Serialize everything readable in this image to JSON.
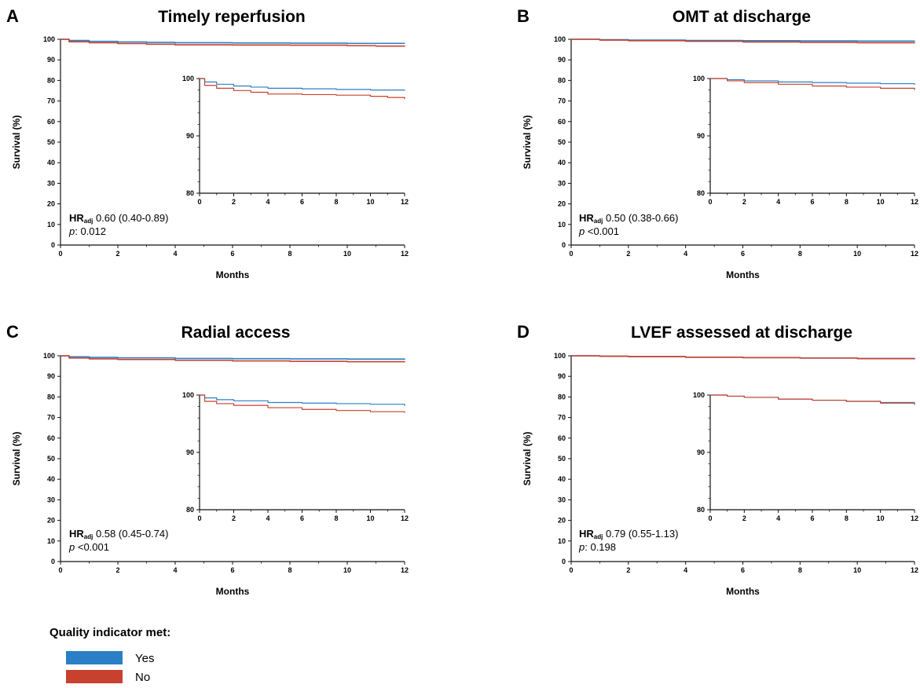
{
  "chart_data": [
    {
      "type": "line",
      "panel": "A",
      "title": "Timely reperfusion",
      "xlabel": "Months",
      "ylabel": "Survival (%)",
      "xlim": [
        0,
        12
      ],
      "ylim": [
        0,
        100
      ],
      "xticks": [
        "0",
        "2",
        "4",
        "6",
        "8",
        "10",
        "12"
      ],
      "yticks": [
        "0",
        "10",
        "20",
        "30",
        "40",
        "50",
        "60",
        "70",
        "80",
        "90",
        "100"
      ],
      "hr_prefix": "HR",
      "hr_sub": "adj",
      "hr_value": "0.60 (0.40-0.89)",
      "p_prefix": "p",
      "p_value": ": 0.012",
      "series": [
        {
          "color": "#2a7fc6",
          "x": [
            0,
            0.3,
            1,
            2,
            3,
            4,
            6,
            8,
            10,
            12
          ],
          "y": [
            100,
            99.4,
            99.0,
            98.7,
            98.5,
            98.3,
            98.2,
            98.1,
            98.0,
            97.9
          ]
        },
        {
          "color": "#c8412f",
          "x": [
            0,
            0.3,
            1,
            2,
            3,
            4,
            6,
            8,
            10,
            11,
            12
          ],
          "y": [
            100,
            98.8,
            98.3,
            97.9,
            97.6,
            97.3,
            97.2,
            97.1,
            96.9,
            96.7,
            96.4
          ]
        }
      ],
      "inset": {
        "xlim": [
          0,
          12
        ],
        "ylim": [
          80,
          100
        ],
        "xticks": [
          "0",
          "2",
          "4",
          "6",
          "8",
          "10",
          "12"
        ],
        "yticks": [
          "80",
          "90",
          "100"
        ]
      }
    },
    {
      "type": "line",
      "panel": "B",
      "title": "OMT at discharge",
      "xlabel": "Months",
      "ylabel": "Survival (%)",
      "xlim": [
        0,
        12
      ],
      "ylim": [
        0,
        100
      ],
      "xticks": [
        "0",
        "2",
        "4",
        "6",
        "8",
        "10",
        "12"
      ],
      "yticks": [
        "0",
        "10",
        "20",
        "30",
        "40",
        "50",
        "60",
        "70",
        "80",
        "90",
        "100"
      ],
      "hr_prefix": "HR",
      "hr_sub": "adj",
      "hr_value": "0.50 (0.38-0.66)",
      "p_prefix": "p",
      "p_value": " <0.001",
      "series": [
        {
          "color": "#2a7fc6",
          "x": [
            0,
            1,
            2,
            4,
            6,
            8,
            10,
            12
          ],
          "y": [
            100,
            99.8,
            99.6,
            99.4,
            99.3,
            99.2,
            99.1,
            98.9
          ]
        },
        {
          "color": "#c8412f",
          "x": [
            0,
            1,
            2,
            4,
            6,
            8,
            10,
            12
          ],
          "y": [
            100,
            99.6,
            99.3,
            99.0,
            98.7,
            98.5,
            98.3,
            98.0
          ]
        }
      ],
      "inset": {
        "xlim": [
          0,
          12
        ],
        "ylim": [
          80,
          100
        ],
        "xticks": [
          "0",
          "2",
          "4",
          "6",
          "8",
          "10",
          "12"
        ],
        "yticks": [
          "80",
          "90",
          "100"
        ]
      }
    },
    {
      "type": "line",
      "panel": "C",
      "title": "Radial access",
      "xlabel": "Months",
      "ylabel": "Survival (%)",
      "xlim": [
        0,
        12
      ],
      "ylim": [
        0,
        100
      ],
      "xticks": [
        "0",
        "2",
        "4",
        "6",
        "8",
        "10",
        "12"
      ],
      "yticks": [
        "0",
        "10",
        "20",
        "30",
        "40",
        "50",
        "60",
        "70",
        "80",
        "90",
        "100"
      ],
      "hr_prefix": "HR",
      "hr_sub": "adj",
      "hr_value": "0.58 (0.45-0.74)",
      "p_prefix": "p",
      "p_value": " <0.001",
      "series": [
        {
          "color": "#2a7fc6",
          "x": [
            0,
            0.3,
            1,
            2,
            4,
            6,
            8,
            10,
            12
          ],
          "y": [
            100,
            99.5,
            99.2,
            99.0,
            98.7,
            98.6,
            98.5,
            98.4,
            98.1
          ]
        },
        {
          "color": "#c8412f",
          "x": [
            0,
            0.3,
            1,
            2,
            4,
            6,
            8,
            10,
            12
          ],
          "y": [
            100,
            98.9,
            98.5,
            98.2,
            97.8,
            97.5,
            97.3,
            97.1,
            96.9
          ]
        }
      ],
      "inset": {
        "xlim": [
          0,
          12
        ],
        "ylim": [
          80,
          100
        ],
        "xticks": [
          "0",
          "2",
          "4",
          "6",
          "8",
          "10",
          "12"
        ],
        "yticks": [
          "80",
          "90",
          "100"
        ]
      }
    },
    {
      "type": "line",
      "panel": "D",
      "title": "LVEF assessed at discharge",
      "xlabel": "Months",
      "ylabel": "Survival (%)",
      "xlim": [
        0,
        12
      ],
      "ylim": [
        0,
        100
      ],
      "xticks": [
        "0",
        "2",
        "4",
        "6",
        "8",
        "10",
        "12"
      ],
      "yticks": [
        "0",
        "10",
        "20",
        "30",
        "40",
        "50",
        "60",
        "70",
        "80",
        "90",
        "100"
      ],
      "hr_prefix": "HR",
      "hr_sub": "adj",
      "hr_value": "0.79 (0.55-1.13)",
      "p_prefix": "p",
      "p_value": ": 0.198",
      "series": [
        {
          "color": "#2a7fc6",
          "x": [
            0,
            1,
            2,
            4,
            6,
            8,
            10,
            12
          ],
          "y": [
            100,
            99.8,
            99.6,
            99.3,
            99.1,
            98.9,
            98.7,
            98.5
          ]
        },
        {
          "color": "#c8412f",
          "x": [
            0,
            1,
            2,
            4,
            6,
            8,
            10,
            12
          ],
          "y": [
            100,
            99.8,
            99.6,
            99.3,
            99.1,
            98.9,
            98.6,
            98.3
          ]
        }
      ],
      "inset": {
        "xlim": [
          0,
          12
        ],
        "ylim": [
          80,
          100
        ],
        "xticks": [
          "0",
          "2",
          "4",
          "6",
          "8",
          "10",
          "12"
        ],
        "yticks": [
          "80",
          "90",
          "100"
        ]
      }
    }
  ],
  "legend": {
    "title": "Quality indicator met:",
    "items": [
      {
        "label": "Yes",
        "color": "#2a7fc6"
      },
      {
        "label": "No",
        "color": "#c8412f"
      }
    ]
  }
}
